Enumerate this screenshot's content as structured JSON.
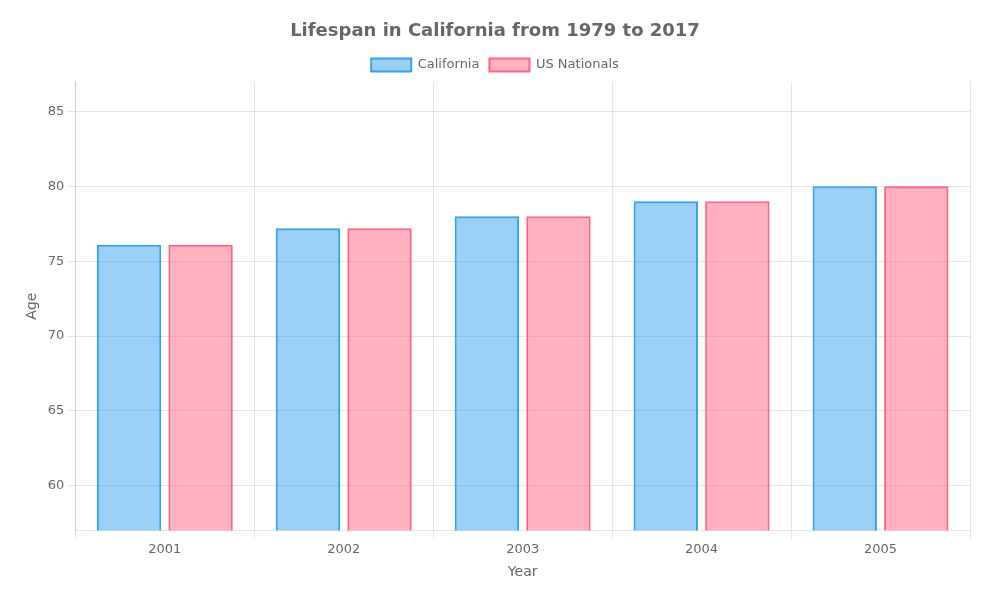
{
  "chart_data": {
    "type": "bar",
    "title": "Lifespan in California from 1979 to 2017",
    "xlabel": "Year",
    "ylabel": "Age",
    "categories": [
      "2001",
      "2002",
      "2003",
      "2004",
      "2005"
    ],
    "series": [
      {
        "name": "California",
        "values": [
          76.1,
          77.2,
          78.0,
          79.0,
          80.0
        ]
      },
      {
        "name": "US Nationals",
        "values": [
          76.1,
          77.2,
          78.0,
          79.0,
          80.0
        ]
      }
    ],
    "ylim": [
      57,
      87
    ],
    "yticks": [
      60,
      65,
      70,
      75,
      80,
      85
    ],
    "grid": true,
    "legend": "top"
  }
}
